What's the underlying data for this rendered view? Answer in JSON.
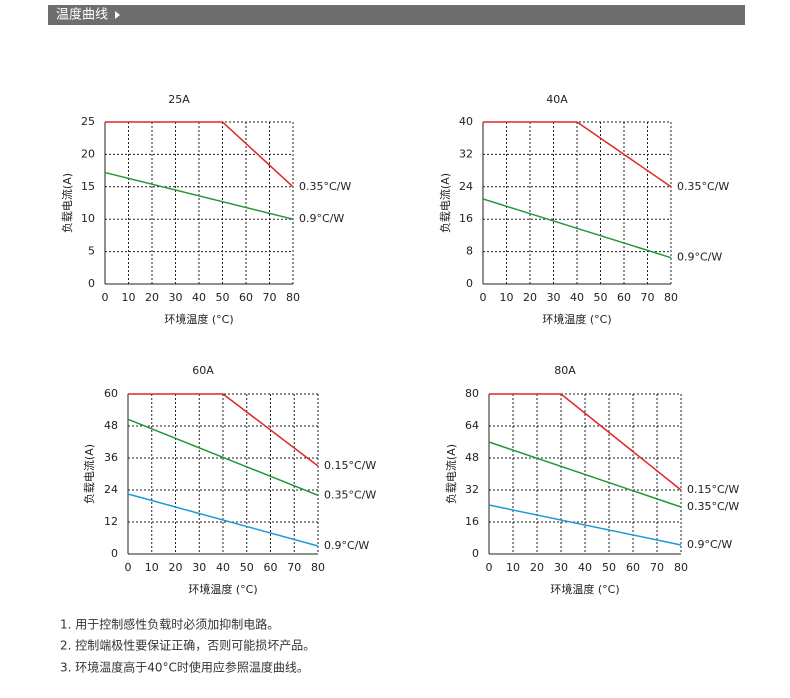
{
  "header": {
    "title": "温度曲线"
  },
  "chart_data": [
    {
      "type": "line",
      "title": "25A",
      "y_label": "负载电流(A)",
      "x_label": "环境温度 (°C)",
      "xlim": [
        0,
        80
      ],
      "xticks": [
        0,
        10,
        20,
        30,
        40,
        50,
        60,
        70,
        80
      ],
      "ylim": [
        0,
        25
      ],
      "yticks": [
        0,
        5,
        10,
        15,
        20,
        25
      ],
      "grid": true,
      "series": [
        {
          "name": "0.35°C/W",
          "color": "#e0262b",
          "x": [
            0,
            50,
            80
          ],
          "values": [
            25,
            25,
            15
          ]
        },
        {
          "name": "0.9°C/W",
          "color": "#21973a",
          "x": [
            0,
            80
          ],
          "values": [
            17.2,
            10
          ]
        }
      ]
    },
    {
      "type": "line",
      "title": "40A",
      "y_label": "负载电流(A)",
      "x_label": "环境温度 (°C)",
      "xlim": [
        0,
        80
      ],
      "xticks": [
        0,
        10,
        20,
        30,
        40,
        50,
        60,
        70,
        80
      ],
      "ylim": [
        0,
        40
      ],
      "yticks": [
        0,
        8,
        16,
        24,
        32,
        40
      ],
      "grid": true,
      "series": [
        {
          "name": "0.35°C/W",
          "color": "#e0262b",
          "x": [
            0,
            40,
            80
          ],
          "values": [
            40,
            40,
            24
          ]
        },
        {
          "name": "0.9°C/W",
          "color": "#21973a",
          "x": [
            0,
            80
          ],
          "values": [
            21,
            6.5
          ]
        }
      ]
    },
    {
      "type": "line",
      "title": "60A",
      "y_label": "负载电流(A)",
      "x_label": "环境温度 (°C)",
      "xlim": [
        0,
        80
      ],
      "xticks": [
        0,
        10,
        20,
        30,
        40,
        50,
        60,
        70,
        80
      ],
      "ylim": [
        0,
        60
      ],
      "yticks": [
        0,
        12,
        24,
        36,
        48,
        60
      ],
      "grid": true,
      "series": [
        {
          "name": "0.15°C/W",
          "color": "#e0262b",
          "x": [
            0,
            40,
            80
          ],
          "values": [
            60,
            60,
            33
          ]
        },
        {
          "name": "0.35°C/W",
          "color": "#21973a",
          "x": [
            0,
            80
          ],
          "values": [
            50.5,
            22
          ]
        },
        {
          "name": "0.9°C/W",
          "color": "#1a9ad6",
          "x": [
            0,
            80
          ],
          "values": [
            22.5,
            3
          ]
        }
      ]
    },
    {
      "type": "line",
      "title": "80A",
      "y_label": "负载电流(A)",
      "x_label": "环境温度 (°C)",
      "xlim": [
        0,
        80
      ],
      "xticks": [
        0,
        10,
        20,
        30,
        40,
        50,
        60,
        70,
        80
      ],
      "ylim": [
        0,
        80
      ],
      "yticks": [
        0,
        16,
        32,
        48,
        64,
        80
      ],
      "grid": true,
      "series": [
        {
          "name": "0.15°C/W",
          "color": "#e0262b",
          "x": [
            0,
            30,
            80
          ],
          "values": [
            80,
            80,
            32
          ]
        },
        {
          "name": "0.35°C/W",
          "color": "#21973a",
          "x": [
            0,
            80
          ],
          "values": [
            56,
            23.5
          ]
        },
        {
          "name": "0.9°C/W",
          "color": "#1a9ad6",
          "x": [
            0,
            80
          ],
          "values": [
            24.5,
            4.5
          ]
        }
      ]
    }
  ],
  "notes": [
    "1. 用于控制感性负载时必须加抑制电路。",
    "2. 控制端极性要保证正确，否则可能损坏产品。",
    "3. 环境温度高于40°C时使用应参照温度曲线。"
  ]
}
